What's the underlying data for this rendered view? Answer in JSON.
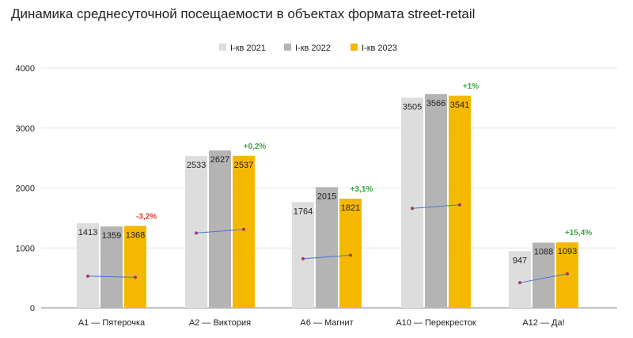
{
  "colors": {
    "series": [
      "#dddddd",
      "#b4b4b4",
      "#f5b800"
    ],
    "positive": "#3aa843",
    "negative": "#e03d2e",
    "trend_line": "#4a72d8",
    "trend_point": "#a33a5a",
    "grid": "#e5e5e5",
    "axis": "#888888",
    "text": "#222222"
  },
  "chart_data": {
    "type": "bar",
    "title": "Динамика среднесуточной посещаемости в объектах формата street-retail",
    "xlabel": "",
    "ylabel": "",
    "ylim": [
      0,
      4000
    ],
    "yticks": [
      0,
      1000,
      2000,
      3000,
      4000
    ],
    "grid": true,
    "legend_position": "top-center",
    "categories": [
      "A1 — Пятерочка",
      "A2 — Виктория",
      "A6 — Магнит",
      "A10 — Перекресток",
      "A12 — Да!"
    ],
    "series": [
      {
        "name": "I-кв 2021",
        "values": [
          1413,
          2533,
          1764,
          3505,
          947
        ]
      },
      {
        "name": "I-кв 2022",
        "values": [
          1359,
          2627,
          2015,
          3566,
          1088
        ]
      },
      {
        "name": "I-кв 2023",
        "values": [
          1368,
          2537,
          1821,
          3541,
          1093
        ]
      }
    ],
    "change_labels": [
      "-3,2%",
      "+0,2%",
      "+3,1%",
      "+1%",
      "+15,4%"
    ],
    "change_signs": [
      "negative",
      "positive",
      "positive",
      "positive",
      "positive"
    ],
    "trend_lines": [
      {
        "start": 530,
        "end": 510
      },
      {
        "start": 1250,
        "end": 1310
      },
      {
        "start": 820,
        "end": 880
      },
      {
        "start": 1660,
        "end": 1720
      },
      {
        "start": 420,
        "end": 570
      }
    ]
  }
}
